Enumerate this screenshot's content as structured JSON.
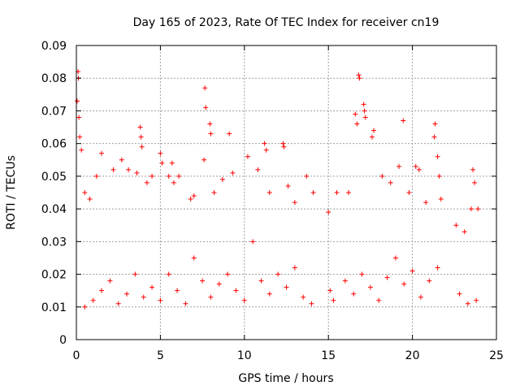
{
  "chart_data": {
    "type": "scatter",
    "title": "Day 165 of 2023, Rate Of TEC Index for receiver cn19",
    "xlabel": "GPS time / hours",
    "ylabel": "ROTI / TECUs",
    "xlim": [
      0,
      25
    ],
    "ylim": [
      0,
      0.09
    ],
    "x_ticks": [
      "0",
      "5",
      "10",
      "15",
      "20",
      "25"
    ],
    "y_ticks": [
      "0",
      "0.01",
      "0.02",
      "0.03",
      "0.04",
      "0.05",
      "0.06",
      "0.07",
      "0.08",
      "0.09"
    ],
    "grid": true,
    "marker": "+",
    "color": "#ff0000",
    "series": [
      {
        "points": [
          [
            0.05,
            0.073
          ],
          [
            0.1,
            0.082
          ],
          [
            0.12,
            0.08
          ],
          [
            0.15,
            0.068
          ],
          [
            0.2,
            0.062
          ],
          [
            0.3,
            0.058
          ],
          [
            0.5,
            0.045
          ],
          [
            0.8,
            0.043
          ],
          [
            1.2,
            0.05
          ],
          [
            1.5,
            0.057
          ],
          [
            2.2,
            0.052
          ],
          [
            2.7,
            0.055
          ],
          [
            3.1,
            0.052
          ],
          [
            3.6,
            0.051
          ],
          [
            3.8,
            0.065
          ],
          [
            3.85,
            0.062
          ],
          [
            3.9,
            0.059
          ],
          [
            4.2,
            0.048
          ],
          [
            4.5,
            0.05
          ],
          [
            5.0,
            0.057
          ],
          [
            5.1,
            0.054
          ],
          [
            5.5,
            0.05
          ],
          [
            5.7,
            0.054
          ],
          [
            5.8,
            0.048
          ],
          [
            6.1,
            0.05
          ],
          [
            6.8,
            0.043
          ],
          [
            7.0,
            0.044
          ],
          [
            7.6,
            0.055
          ],
          [
            7.65,
            0.077
          ],
          [
            7.7,
            0.071
          ],
          [
            7.95,
            0.066
          ],
          [
            8.0,
            0.063
          ],
          [
            8.2,
            0.045
          ],
          [
            8.7,
            0.049
          ],
          [
            9.1,
            0.063
          ],
          [
            9.3,
            0.051
          ],
          [
            10.2,
            0.056
          ],
          [
            10.8,
            0.052
          ],
          [
            11.2,
            0.06
          ],
          [
            11.3,
            0.058
          ],
          [
            11.5,
            0.045
          ],
          [
            12.3,
            0.06
          ],
          [
            12.35,
            0.059
          ],
          [
            12.6,
            0.047
          ],
          [
            13.0,
            0.042
          ],
          [
            13.7,
            0.05
          ],
          [
            14.1,
            0.045
          ],
          [
            15.0,
            0.039
          ],
          [
            15.5,
            0.045
          ],
          [
            16.2,
            0.045
          ],
          [
            16.8,
            0.081
          ],
          [
            16.85,
            0.08
          ],
          [
            16.6,
            0.069
          ],
          [
            16.7,
            0.066
          ],
          [
            17.1,
            0.072
          ],
          [
            17.15,
            0.07
          ],
          [
            17.2,
            0.068
          ],
          [
            17.6,
            0.062
          ],
          [
            17.7,
            0.064
          ],
          [
            18.2,
            0.05
          ],
          [
            18.7,
            0.048
          ],
          [
            19.2,
            0.053
          ],
          [
            19.45,
            0.067
          ],
          [
            19.8,
            0.045
          ],
          [
            20.2,
            0.053
          ],
          [
            20.4,
            0.052
          ],
          [
            20.8,
            0.042
          ],
          [
            21.3,
            0.062
          ],
          [
            21.35,
            0.066
          ],
          [
            21.5,
            0.056
          ],
          [
            21.6,
            0.05
          ],
          [
            21.7,
            0.043
          ],
          [
            22.6,
            0.035
          ],
          [
            23.1,
            0.033
          ],
          [
            23.5,
            0.04
          ],
          [
            23.6,
            0.052
          ],
          [
            23.7,
            0.048
          ],
          [
            23.9,
            0.04
          ],
          [
            0.5,
            0.01
          ],
          [
            1.0,
            0.012
          ],
          [
            1.5,
            0.015
          ],
          [
            2.0,
            0.018
          ],
          [
            2.5,
            0.011
          ],
          [
            3.0,
            0.014
          ],
          [
            3.5,
            0.02
          ],
          [
            4.0,
            0.013
          ],
          [
            4.5,
            0.016
          ],
          [
            5.0,
            0.012
          ],
          [
            5.5,
            0.02
          ],
          [
            6.0,
            0.015
          ],
          [
            6.5,
            0.011
          ],
          [
            7.0,
            0.025
          ],
          [
            7.5,
            0.018
          ],
          [
            8.0,
            0.013
          ],
          [
            8.5,
            0.017
          ],
          [
            9.0,
            0.02
          ],
          [
            9.5,
            0.015
          ],
          [
            10.0,
            0.012
          ],
          [
            10.5,
            0.03
          ],
          [
            11.0,
            0.018
          ],
          [
            11.5,
            0.014
          ],
          [
            12.0,
            0.02
          ],
          [
            12.5,
            0.016
          ],
          [
            13.0,
            0.022
          ],
          [
            13.5,
            0.013
          ],
          [
            14.0,
            0.011
          ],
          [
            15.1,
            0.015
          ],
          [
            15.3,
            0.012
          ],
          [
            16.0,
            0.018
          ],
          [
            16.5,
            0.014
          ],
          [
            17.0,
            0.02
          ],
          [
            17.5,
            0.016
          ],
          [
            18.0,
            0.012
          ],
          [
            18.5,
            0.019
          ],
          [
            19.0,
            0.025
          ],
          [
            19.5,
            0.017
          ],
          [
            20.0,
            0.021
          ],
          [
            20.5,
            0.013
          ],
          [
            21.0,
            0.018
          ],
          [
            21.5,
            0.022
          ],
          [
            22.8,
            0.014
          ],
          [
            23.3,
            0.011
          ],
          [
            23.8,
            0.012
          ]
        ]
      }
    ]
  }
}
